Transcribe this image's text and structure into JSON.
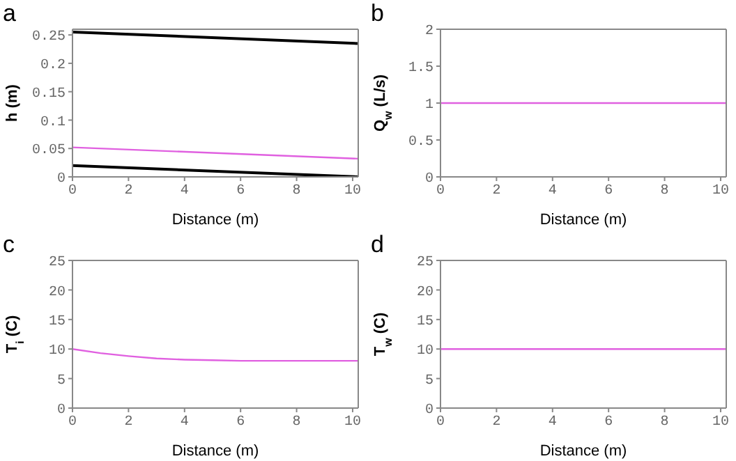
{
  "chart_data": [
    {
      "type": "line",
      "title": "a",
      "xlabel": "Distance (m)",
      "ylabel": "h (m)",
      "xlim": [
        0,
        10.2
      ],
      "xticks": [
        0,
        2,
        4,
        6,
        8,
        10
      ],
      "ylim": [
        0,
        0.26
      ],
      "yticks": [
        0,
        0.05,
        0.1,
        0.15,
        0.2,
        0.25
      ],
      "marker": "none",
      "line_style": "solid",
      "x": [
        0,
        10.2
      ],
      "series": [
        {
          "color": "#000000",
          "values": [
            0.255,
            0.235
          ]
        },
        {
          "color": "#e060e0",
          "values": [
            0.052,
            0.032
          ]
        },
        {
          "color": "#000000",
          "values": [
            0.02,
            0.0
          ]
        }
      ]
    },
    {
      "type": "line",
      "title": "b",
      "xlabel": "Distance (m)",
      "ylabel": "Q$_{w}$ (L/s)",
      "xlim": [
        0,
        10.2
      ],
      "xticks": [
        0,
        2,
        4,
        6,
        8,
        10
      ],
      "ylim": [
        0,
        2
      ],
      "yticks": [
        0,
        0.5,
        1,
        1.5,
        2
      ],
      "marker": "none",
      "line_style": "solid",
      "x": [
        0,
        10.2
      ],
      "series": [
        {
          "color": "#e060e0",
          "values": [
            1,
            1
          ]
        }
      ]
    },
    {
      "type": "line",
      "title": "c",
      "xlabel": "Distance (m)",
      "ylabel": "T$_{i}$ (C)",
      "xlim": [
        0,
        10.2
      ],
      "xticks": [
        0,
        2,
        4,
        6,
        8,
        10
      ],
      "ylim": [
        0,
        25
      ],
      "yticks": [
        0,
        5,
        10,
        15,
        20,
        25
      ],
      "marker": "none",
      "line_style": "solid",
      "x": [
        0,
        1,
        2,
        3,
        4,
        5,
        6,
        8,
        10.2
      ],
      "series": [
        {
          "color": "#e060e0",
          "values": [
            10,
            9.3,
            8.8,
            8.4,
            8.2,
            8.1,
            8,
            8,
            8
          ]
        }
      ]
    },
    {
      "type": "line",
      "title": "d",
      "xlabel": "Distance (m)",
      "ylabel": "T$_{w}$ (C)",
      "xlim": [
        0,
        10.2
      ],
      "xticks": [
        0,
        2,
        4,
        6,
        8,
        10
      ],
      "ylim": [
        0,
        25
      ],
      "yticks": [
        0,
        5,
        10,
        15,
        20,
        25
      ],
      "marker": "none",
      "line_style": "solid",
      "x": [
        0,
        10.2
      ],
      "series": [
        {
          "color": "#e060e0",
          "values": [
            10,
            10
          ]
        }
      ]
    }
  ]
}
